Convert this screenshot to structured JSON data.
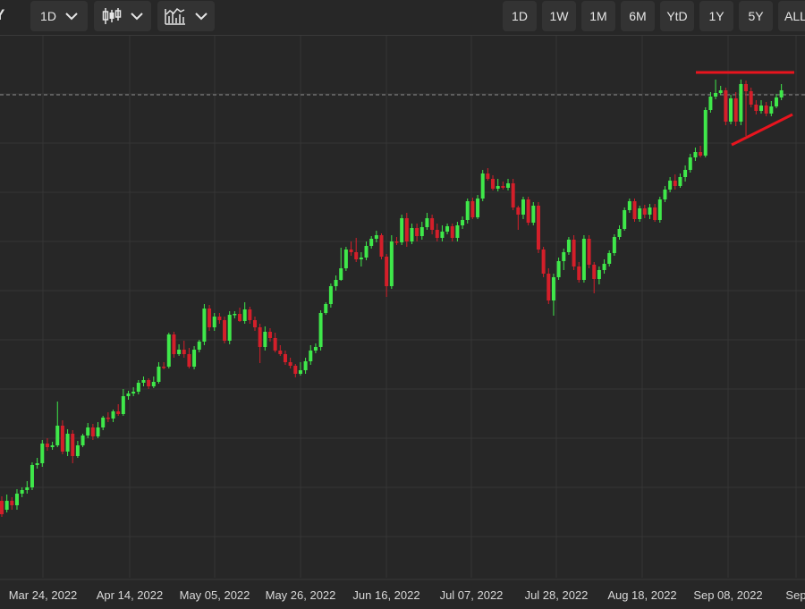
{
  "toolbar": {
    "symbol_fragment": "Y",
    "interval": {
      "label": "1D",
      "icon": "chevron-down-icon"
    },
    "chart_style": {
      "icon": "candlestick-icon",
      "dropdown_icon": "chevron-down-icon"
    },
    "indicators": {
      "icon": "indicators-icon",
      "dropdown_icon": "chevron-down-icon"
    },
    "ranges": [
      "1D",
      "1W",
      "1M",
      "6M",
      "YtD",
      "1Y",
      "5Y",
      "ALL"
    ]
  },
  "colors": {
    "background": "#272727",
    "grid": "#363636",
    "up": "#3fe84a",
    "down": "#d41f2a",
    "trendline": "#e8141e",
    "last_price_line": "#8a8a8a",
    "axis_text": "#d9d9d9"
  },
  "chart_data": {
    "type": "candlestick",
    "x_tick_labels": [
      "Mar 24, 2022",
      "Apr 14, 2022",
      "May 05, 2022",
      "May 26, 2022",
      "Jun 16, 2022",
      "Jul 07, 2022",
      "Jul 28, 2022",
      "Aug 18, 2022",
      "Sep 08, 2022",
      "Sep"
    ],
    "x_range": [
      "2022-03-17",
      "2022-09-22"
    ],
    "y_range_px_units": "unlabeled price axis (no tick values visible)",
    "horizontal_grid": true,
    "vertical_grid": true,
    "candles": [
      [
        0,
        560,
        575,
        555,
        578
      ],
      [
        1,
        570,
        560,
        553,
        573
      ],
      [
        2,
        560,
        565,
        556,
        570
      ],
      [
        3,
        565,
        552,
        547,
        570
      ],
      [
        4,
        552,
        548,
        545,
        556
      ],
      [
        5,
        548,
        545,
        538,
        552
      ],
      [
        6,
        545,
        520,
        517,
        548
      ],
      [
        7,
        520,
        518,
        512,
        524
      ],
      [
        8,
        518,
        496,
        492,
        522
      ],
      [
        9,
        496,
        500,
        490,
        504
      ],
      [
        10,
        500,
        498,
        494,
        503
      ],
      [
        11,
        498,
        476,
        449,
        500
      ],
      [
        12,
        476,
        505,
        470,
        508
      ],
      [
        13,
        505,
        485,
        480,
        510
      ],
      [
        14,
        485,
        510,
        481,
        518
      ],
      [
        15,
        510,
        498,
        493,
        512
      ],
      [
        16,
        498,
        487,
        485,
        500
      ],
      [
        17,
        487,
        478,
        473,
        490
      ],
      [
        18,
        478,
        488,
        474,
        492
      ],
      [
        19,
        488,
        478,
        472,
        490
      ],
      [
        20,
        478,
        467,
        465,
        481
      ],
      [
        21,
        467,
        468,
        461,
        472
      ],
      [
        22,
        468,
        460,
        458,
        472
      ],
      [
        23,
        460,
        463,
        452,
        465
      ],
      [
        24,
        463,
        443,
        435,
        465
      ],
      [
        25,
        443,
        440,
        437,
        447
      ],
      [
        26,
        440,
        438,
        433,
        443
      ],
      [
        27,
        438,
        428,
        425,
        441
      ],
      [
        28,
        428,
        425,
        421,
        432
      ],
      [
        29,
        425,
        432,
        423,
        435
      ],
      [
        30,
        432,
        427,
        421,
        434
      ],
      [
        31,
        427,
        410,
        405,
        429
      ],
      [
        32,
        410,
        410,
        405,
        413
      ],
      [
        33,
        410,
        374,
        372,
        412
      ],
      [
        34,
        374,
        396,
        371,
        400
      ],
      [
        35,
        396,
        391,
        385,
        398
      ],
      [
        36,
        391,
        396,
        381,
        400
      ],
      [
        37,
        396,
        410,
        389,
        412
      ],
      [
        38,
        410,
        391,
        387,
        413
      ],
      [
        39,
        391,
        382,
        380,
        394
      ],
      [
        40,
        382,
        345,
        340,
        386
      ],
      [
        41,
        345,
        366,
        341,
        370
      ],
      [
        42,
        366,
        354,
        350,
        370
      ],
      [
        43,
        354,
        358,
        350,
        362
      ],
      [
        44,
        358,
        381,
        354,
        384
      ],
      [
        45,
        381,
        352,
        348,
        385
      ],
      [
        46,
        352,
        351,
        348,
        356
      ],
      [
        47,
        351,
        359,
        344,
        360
      ],
      [
        48,
        359,
        346,
        338,
        362
      ],
      [
        49,
        346,
        358,
        343,
        362
      ],
      [
        50,
        358,
        366,
        354,
        370
      ],
      [
        51,
        366,
        388,
        362,
        406
      ],
      [
        52,
        388,
        371,
        365,
        392
      ],
      [
        53,
        371,
        378,
        367,
        382
      ],
      [
        54,
        378,
        392,
        372,
        394
      ],
      [
        55,
        392,
        396,
        386,
        398
      ],
      [
        56,
        396,
        405,
        392,
        408
      ],
      [
        57,
        405,
        409,
        400,
        412
      ],
      [
        58,
        409,
        418,
        407,
        422
      ],
      [
        59,
        418,
        414,
        405,
        420
      ],
      [
        60,
        414,
        404,
        400,
        418
      ],
      [
        61,
        404,
        392,
        386,
        408
      ],
      [
        62,
        392,
        388,
        384,
        395
      ],
      [
        63,
        388,
        350,
        347,
        392
      ],
      [
        64,
        350,
        340,
        338,
        352
      ],
      [
        65,
        340,
        320,
        317,
        344
      ],
      [
        66,
        320,
        313,
        308,
        325
      ],
      [
        67,
        313,
        300,
        277,
        314
      ],
      [
        68,
        300,
        279,
        276,
        303
      ],
      [
        69,
        279,
        282,
        270,
        286
      ],
      [
        70,
        282,
        290,
        266,
        293
      ],
      [
        71,
        290,
        288,
        282,
        298
      ],
      [
        72,
        288,
        275,
        270,
        291
      ],
      [
        73,
        275,
        267,
        264,
        278
      ],
      [
        74,
        267,
        263,
        258,
        271
      ],
      [
        75,
        263,
        287,
        261,
        290
      ],
      [
        76,
        287,
        320,
        284,
        332
      ],
      [
        77,
        320,
        270,
        263,
        323
      ],
      [
        78,
        270,
        271,
        265,
        274
      ],
      [
        79,
        271,
        244,
        240,
        274
      ],
      [
        80,
        244,
        270,
        238,
        276
      ],
      [
        81,
        270,
        255,
        250,
        273
      ],
      [
        82,
        255,
        264,
        250,
        270
      ],
      [
        83,
        264,
        254,
        248,
        268
      ],
      [
        84,
        254,
        244,
        238,
        257
      ],
      [
        85,
        244,
        257,
        240,
        262
      ],
      [
        86,
        257,
        266,
        250,
        270
      ],
      [
        87,
        266,
        259,
        252,
        270
      ],
      [
        88,
        259,
        253,
        250,
        262
      ],
      [
        89,
        253,
        266,
        250,
        270
      ],
      [
        90,
        266,
        252,
        248,
        270
      ],
      [
        91,
        252,
        246,
        242,
        256
      ],
      [
        92,
        246,
        225,
        222,
        250
      ],
      [
        93,
        225,
        243,
        221,
        245
      ],
      [
        94,
        243,
        222,
        218,
        245
      ],
      [
        95,
        222,
        194,
        190,
        225
      ],
      [
        96,
        194,
        200,
        188,
        202
      ],
      [
        97,
        200,
        211,
        196,
        213
      ],
      [
        98,
        211,
        208,
        200,
        214
      ],
      [
        99,
        208,
        210,
        203,
        212
      ],
      [
        100,
        210,
        205,
        200,
        213
      ],
      [
        101,
        205,
        232,
        200,
        235
      ],
      [
        102,
        232,
        240,
        230,
        257
      ],
      [
        103,
        240,
        223,
        220,
        245
      ],
      [
        104,
        223,
        249,
        220,
        252
      ],
      [
        105,
        249,
        230,
        226,
        252
      ],
      [
        106,
        230,
        279,
        226,
        283
      ],
      [
        107,
        279,
        306,
        276,
        310
      ],
      [
        108,
        306,
        336,
        300,
        340
      ],
      [
        109,
        336,
        310,
        306,
        353
      ],
      [
        110,
        310,
        292,
        288,
        313
      ],
      [
        111,
        292,
        282,
        278,
        302
      ],
      [
        112,
        282,
        268,
        265,
        285
      ],
      [
        113,
        268,
        298,
        263,
        302
      ],
      [
        114,
        298,
        313,
        293,
        316
      ],
      [
        115,
        313,
        267,
        263,
        316
      ],
      [
        116,
        267,
        296,
        263,
        300
      ],
      [
        117,
        296,
        312,
        293,
        328
      ],
      [
        118,
        312,
        302,
        298,
        318
      ],
      [
        119,
        302,
        295,
        290,
        306
      ],
      [
        120,
        295,
        283,
        280,
        298
      ],
      [
        121,
        283,
        265,
        262,
        286
      ],
      [
        122,
        265,
        256,
        252,
        268
      ],
      [
        123,
        256,
        235,
        232,
        258
      ],
      [
        124,
        235,
        225,
        222,
        238
      ],
      [
        125,
        225,
        245,
        222,
        248
      ],
      [
        126,
        245,
        233,
        230,
        248
      ],
      [
        127,
        233,
        240,
        229,
        244
      ],
      [
        128,
        240,
        232,
        228,
        245
      ],
      [
        129,
        232,
        246,
        228,
        248
      ],
      [
        130,
        246,
        223,
        220,
        249
      ],
      [
        131,
        223,
        212,
        208,
        226
      ],
      [
        132,
        212,
        202,
        198,
        215
      ],
      [
        133,
        202,
        208,
        195,
        212
      ],
      [
        134,
        208,
        198,
        194,
        210
      ],
      [
        135,
        198,
        190,
        185,
        203
      ],
      [
        136,
        190,
        176,
        172,
        193
      ],
      [
        137,
        176,
        170,
        165,
        180
      ],
      [
        138,
        170,
        174,
        163,
        176
      ],
      [
        139,
        174,
        123,
        120,
        176
      ],
      [
        140,
        123,
        108,
        103,
        126
      ],
      [
        141,
        108,
        104,
        89,
        111
      ],
      [
        142,
        104,
        101,
        96,
        106
      ],
      [
        143,
        101,
        136,
        98,
        140
      ],
      [
        144,
        136,
        110,
        106,
        139
      ],
      [
        145,
        110,
        136,
        103,
        141
      ],
      [
        146,
        136,
        94,
        89,
        140
      ],
      [
        147,
        94,
        102,
        90,
        152
      ],
      [
        148,
        102,
        117,
        98,
        120
      ],
      [
        149,
        117,
        124,
        112,
        128
      ],
      [
        150,
        124,
        118,
        112,
        127
      ],
      [
        151,
        118,
        127,
        114,
        130
      ],
      [
        152,
        127,
        119,
        113,
        130
      ],
      [
        153,
        119,
        109,
        105,
        121
      ],
      [
        154,
        109,
        101,
        94,
        112
      ]
    ],
    "candle_fields": [
      "index",
      "open",
      "close",
      "low",
      "high"
    ],
    "candle_units": "relative price (arbitrary, higher number = lower price)",
    "last_price_line": true,
    "annotations": [
      {
        "type": "horizontal-resistance",
        "color": "#e8141e"
      },
      {
        "type": "rising-support",
        "color": "#e8141e"
      }
    ]
  }
}
